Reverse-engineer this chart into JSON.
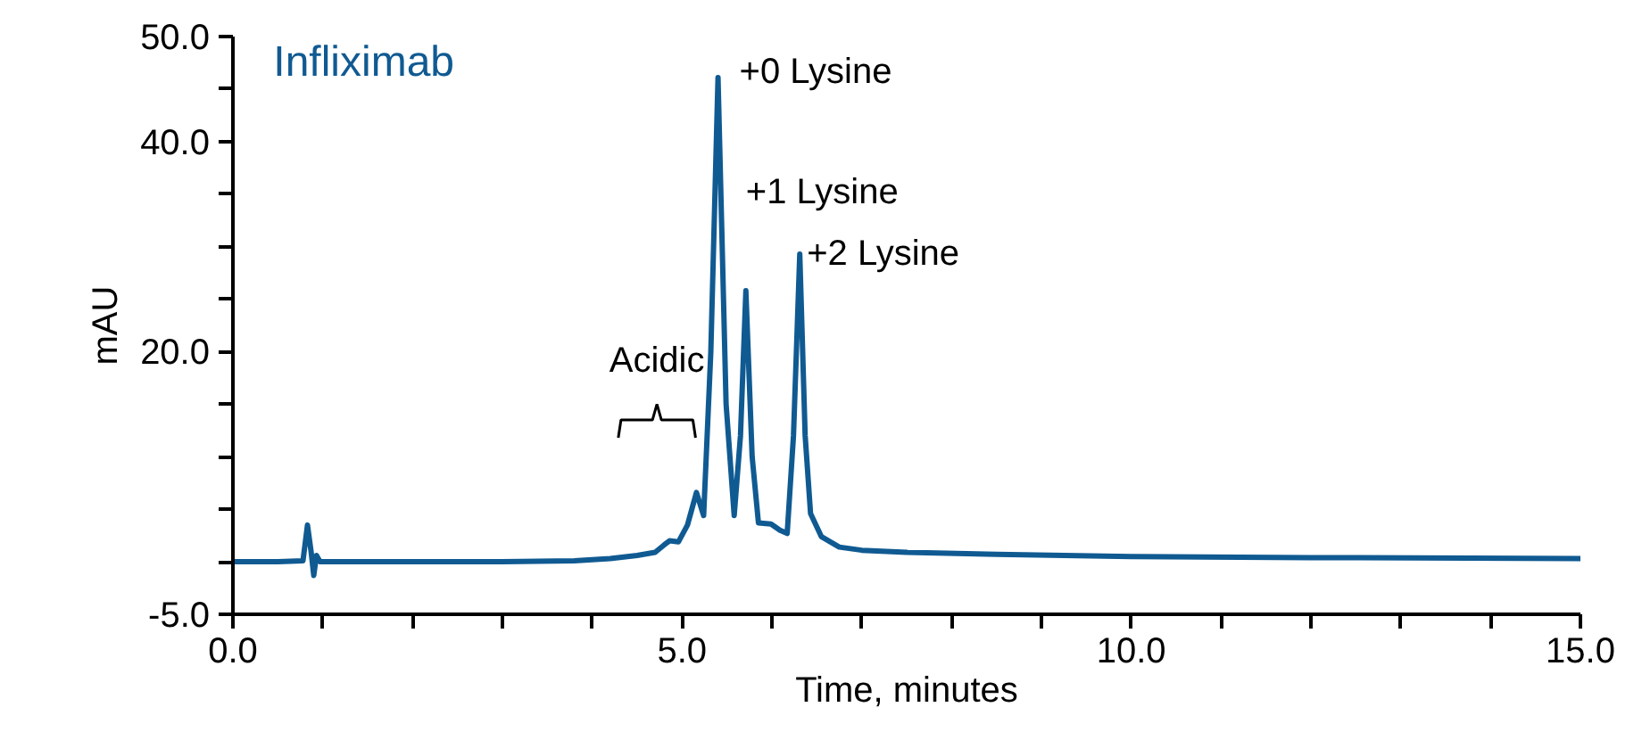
{
  "chart_data": {
    "type": "line",
    "title": "Infliximab",
    "xlabel": "Time, minutes",
    "ylabel": "mAU",
    "series": [
      {
        "color": "#105a92",
        "x": [
          0.0,
          0.5,
          0.78,
          0.83,
          0.87,
          0.9,
          0.93,
          0.97,
          1.2,
          2.0,
          3.0,
          3.8,
          4.2,
          4.5,
          4.7,
          4.8,
          4.86,
          4.96,
          5.06,
          5.16,
          5.24,
          5.32,
          5.4,
          5.49,
          5.58,
          5.65,
          5.71,
          5.78,
          5.85,
          5.99,
          6.09,
          6.17,
          6.24,
          6.31,
          6.37,
          6.43,
          6.55,
          6.75,
          7.0,
          7.5,
          8.5,
          10.0,
          12.0,
          15.0
        ],
        "values": [
          0.0,
          0.0,
          0.1,
          3.5,
          1.0,
          -1.3,
          0.6,
          0.0,
          0.0,
          0.0,
          0.0,
          0.1,
          0.3,
          0.6,
          0.9,
          1.6,
          2.0,
          1.9,
          3.5,
          6.6,
          4.4,
          20.0,
          46.1,
          15.0,
          4.4,
          12.0,
          25.8,
          10.0,
          3.7,
          3.6,
          3.0,
          2.7,
          12.0,
          29.3,
          12.0,
          4.6,
          2.4,
          1.4,
          1.1,
          0.9,
          0.7,
          0.5,
          0.4,
          0.3
        ]
      }
    ],
    "xlim": [
      0,
      15
    ],
    "ylim": [
      -5,
      50
    ],
    "xticks": [
      {
        "value": 0,
        "label": "0.0"
      },
      {
        "value": 1,
        "label": null
      },
      {
        "value": 2,
        "label": null
      },
      {
        "value": 3,
        "label": null
      },
      {
        "value": 4,
        "label": null
      },
      {
        "value": 5,
        "label": "5.0"
      },
      {
        "value": 6,
        "label": null
      },
      {
        "value": 7,
        "label": null
      },
      {
        "value": 8,
        "label": null
      },
      {
        "value": 9,
        "label": null
      },
      {
        "value": 10,
        "label": "10.0"
      },
      {
        "value": 11,
        "label": null
      },
      {
        "value": 12,
        "label": null
      },
      {
        "value": 13,
        "label": null
      },
      {
        "value": 14,
        "label": null
      },
      {
        "value": 15,
        "label": "15.0"
      }
    ],
    "yticks": [
      {
        "value": -5,
        "label": "-5.0"
      },
      {
        "value": 0,
        "label": null
      },
      {
        "value": 5,
        "label": null
      },
      {
        "value": 10,
        "label": null
      },
      {
        "value": 15,
        "label": null
      },
      {
        "value": 20,
        "label": "20.0"
      },
      {
        "value": 25,
        "label": null
      },
      {
        "value": 30,
        "label": null
      },
      {
        "value": 35,
        "label": null
      },
      {
        "value": 40,
        "label": "40.0"
      },
      {
        "value": 45,
        "label": null
      },
      {
        "value": 50,
        "label": "50.0"
      }
    ],
    "annotations": [
      {
        "text": "+0 Lysine",
        "x": 5.4,
        "y": 46.1
      },
      {
        "text": "+1 Lysine",
        "x": 5.71,
        "y": 25.8
      },
      {
        "text": "+2 Lysine",
        "x": 6.31,
        "y": 29.3
      },
      {
        "text": "Acidic",
        "x": 4.72,
        "y": 13.5
      }
    ],
    "line_style": "solid"
  }
}
